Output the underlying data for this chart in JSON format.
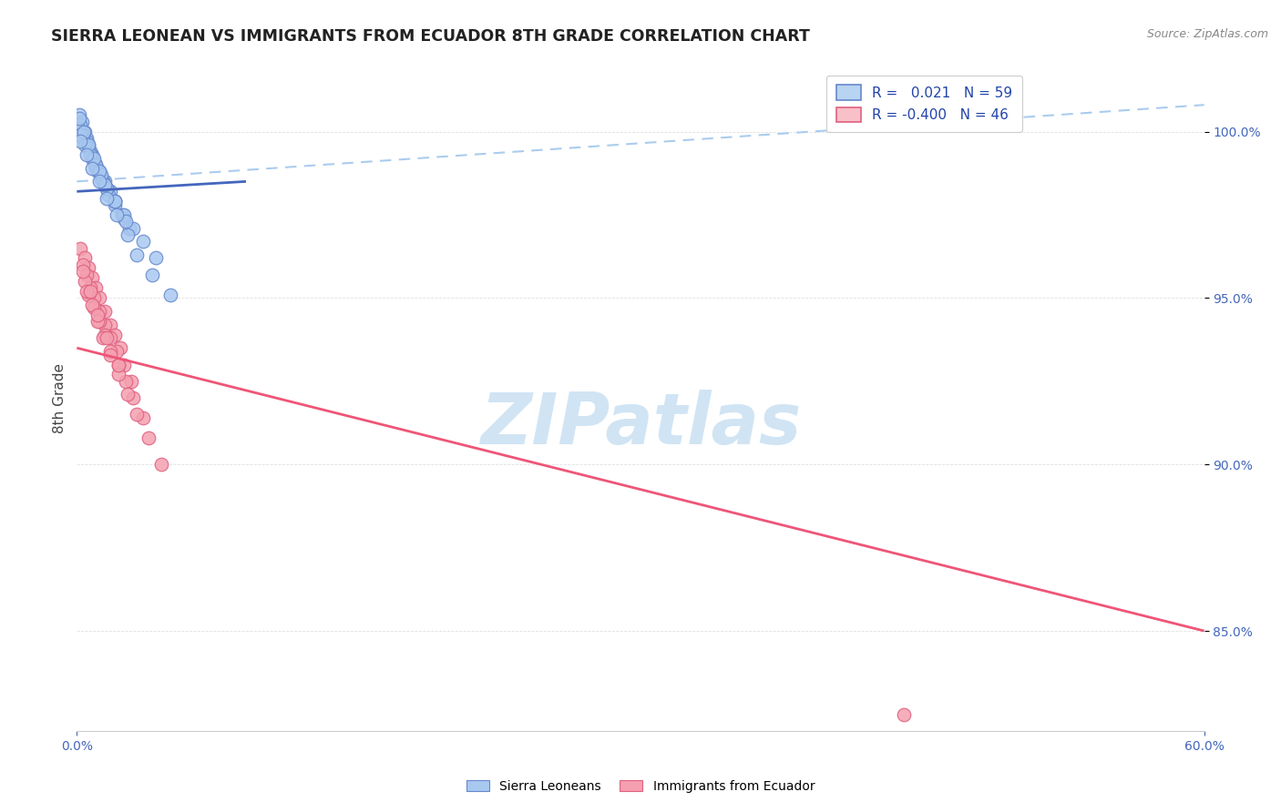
{
  "title": "SIERRA LEONEAN VS IMMIGRANTS FROM ECUADOR 8TH GRADE CORRELATION CHART",
  "source_text": "Source: ZipAtlas.com",
  "ylabel": "8th Grade",
  "x_min": 0.0,
  "x_max": 60.0,
  "y_min": 82.0,
  "y_max": 102.0,
  "y_ticks": [
    85.0,
    90.0,
    95.0,
    100.0
  ],
  "x_ticks": [
    0.0,
    60.0
  ],
  "blue_color": "#A8C8F0",
  "pink_color": "#F4A0B0",
  "blue_edge_color": "#6688CC",
  "pink_edge_color": "#E06080",
  "blue_line_color": "#4466BB",
  "pink_line_color": "#EE5577",
  "dashed_line_color": "#AACCEE",
  "legend_blue_face": "#B8D4F0",
  "legend_pink_face": "#F8C0C8",
  "legend_blue_edge": "#6688CC",
  "legend_pink_edge": "#E06080",
  "tick_color": "#4466BB",
  "title_color": "#222222",
  "source_color": "#888888",
  "watermark": "ZIPatlas",
  "watermark_color": "#D0E4F4",
  "background_color": "#FFFFFF",
  "blue_scatter_x": [
    0.15,
    0.25,
    0.4,
    0.5,
    0.6,
    0.8,
    1.0,
    1.2,
    1.5,
    1.8,
    0.2,
    0.3,
    0.5,
    0.7,
    0.9,
    1.1,
    1.4,
    1.7,
    2.0,
    2.5,
    0.1,
    0.3,
    0.6,
    0.8,
    1.0,
    1.3,
    1.6,
    2.0,
    2.4,
    2.8,
    0.2,
    0.4,
    0.7,
    1.0,
    1.3,
    1.6,
    2.0,
    2.5,
    3.0,
    0.15,
    0.35,
    0.6,
    0.9,
    1.2,
    1.5,
    2.0,
    2.6,
    3.5,
    4.2,
    0.2,
    0.5,
    0.8,
    1.2,
    1.6,
    2.1,
    2.7,
    3.2,
    4.0,
    5.0
  ],
  "blue_scatter_y": [
    100.5,
    100.3,
    100.0,
    99.8,
    99.6,
    99.3,
    99.0,
    98.8,
    98.5,
    98.2,
    100.2,
    99.9,
    99.7,
    99.4,
    99.1,
    98.8,
    98.5,
    98.1,
    97.8,
    97.4,
    100.1,
    99.8,
    99.5,
    99.2,
    98.9,
    98.6,
    98.3,
    97.9,
    97.5,
    97.1,
    99.9,
    99.6,
    99.3,
    99.0,
    98.7,
    98.3,
    97.9,
    97.5,
    97.1,
    100.4,
    100.0,
    99.6,
    99.2,
    98.8,
    98.4,
    97.9,
    97.3,
    96.7,
    96.2,
    99.7,
    99.3,
    98.9,
    98.5,
    98.0,
    97.5,
    96.9,
    96.3,
    95.7,
    95.1
  ],
  "pink_scatter_x": [
    0.2,
    0.4,
    0.6,
    0.8,
    1.0,
    1.2,
    1.5,
    1.8,
    2.0,
    2.3,
    0.3,
    0.5,
    0.7,
    0.9,
    1.2,
    1.5,
    1.8,
    2.1,
    2.5,
    2.9,
    0.4,
    0.6,
    0.9,
    1.2,
    1.5,
    1.8,
    2.2,
    2.6,
    3.0,
    3.5,
    0.5,
    0.8,
    1.1,
    1.4,
    1.8,
    2.2,
    2.7,
    3.2,
    3.8,
    4.5,
    0.3,
    0.7,
    1.1,
    1.6,
    2.2,
    44.0
  ],
  "pink_scatter_y": [
    96.5,
    96.2,
    95.9,
    95.6,
    95.3,
    95.0,
    94.6,
    94.2,
    93.9,
    93.5,
    96.0,
    95.7,
    95.3,
    95.0,
    94.6,
    94.2,
    93.8,
    93.4,
    93.0,
    92.5,
    95.5,
    95.1,
    94.7,
    94.3,
    93.9,
    93.4,
    93.0,
    92.5,
    92.0,
    91.4,
    95.2,
    94.8,
    94.3,
    93.8,
    93.3,
    92.7,
    92.1,
    91.5,
    90.8,
    90.0,
    95.8,
    95.2,
    94.5,
    93.8,
    93.0,
    82.5
  ],
  "blue_line_x": [
    0.0,
    9.0
  ],
  "blue_line_y": [
    98.2,
    98.5
  ],
  "pink_line_x": [
    0.0,
    60.0
  ],
  "pink_line_y": [
    93.5,
    85.0
  ],
  "dashed_line_x": [
    0.0,
    60.0
  ],
  "dashed_line_y": [
    98.5,
    100.8
  ]
}
